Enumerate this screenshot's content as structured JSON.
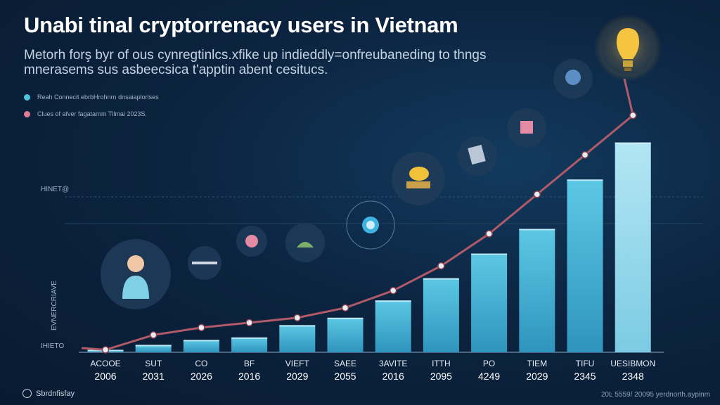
{
  "title": "Unabi tinal cryptorrenacy users in Vietnam",
  "subtitle": "Metorh forş byr of ous cynregtinlcs.xfike up indieddly=onfreubaneding to thngs mnerasems sus asbeecsica t'apptin abent cesitucs.",
  "legend": [
    {
      "label": "Reah Connecit ebrbHrohnrn dnsaiaplorlses",
      "color": "#4fc3dc"
    },
    {
      "label": "Clues of afver fagatarnm Tllmai 2023S.",
      "color": "#e07a95"
    }
  ],
  "y_axis": {
    "label": "EVNERCRIAVE",
    "marks": [
      "HINET@",
      "IHIETO"
    ]
  },
  "footer": {
    "brand": "Sbrdnfisfay",
    "note": "20Ŀ 5559/ 20095 yerdnorth.aypinm"
  },
  "colors": {
    "bar": "#4ab8d8",
    "bar_last": "#9fdcef",
    "trend": "#b05a6a",
    "background": "#0c2440",
    "bulb": "#f5c542"
  },
  "chart_data": {
    "type": "bar",
    "categories": [
      "ACOOE 2006",
      "SUT 2031",
      "CO 2026",
      "BF 2016",
      "VIEFT 2029",
      "SAEE 2055",
      "3AVITE 2016",
      "ITTH 2095",
      "PO 4249",
      "TIEM 2029",
      "TIFU 2345",
      "UESIBMON 2348"
    ],
    "tick_top": [
      "ACOOE",
      "SUT",
      "CO",
      "BF",
      "VIEFT",
      "SAEE",
      "3AVITE",
      "ITTH",
      "PO",
      "TIEM",
      "TIFU",
      "UESIBMON"
    ],
    "tick_bottom": [
      "2006",
      "2031",
      "2026",
      "2016",
      "2029",
      "2055",
      "2016",
      "2095",
      "4249",
      "2029",
      "2345",
      "2348"
    ],
    "series": [
      {
        "values": [
          1,
          3,
          5,
          6,
          11,
          14,
          21,
          30,
          40,
          50,
          70,
          85
        ]
      }
    ],
    "trend": [
      1,
      7,
      10,
      12,
      14,
      18,
      25,
      35,
      48,
      64,
      80,
      96
    ],
    "ylim": [
      0,
      100
    ],
    "grid": true,
    "legend_position": "top-left"
  }
}
